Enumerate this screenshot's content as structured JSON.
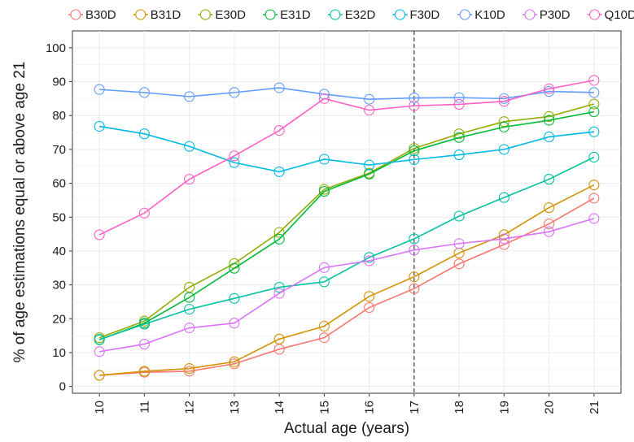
{
  "chart_data": {
    "type": "line",
    "title": "",
    "xlabel": "Actual age (years)",
    "ylabel": "% of age estimations equal or above age 21",
    "x": [
      10,
      11,
      12,
      13,
      14,
      15,
      16,
      17,
      18,
      19,
      20,
      21
    ],
    "xlim": [
      9.4,
      21.6
    ],
    "ylim": [
      -2,
      105
    ],
    "yticks": [
      0,
      10,
      20,
      30,
      40,
      50,
      60,
      70,
      80,
      90,
      100
    ],
    "reference_line_x": 17,
    "grid": true,
    "legend_position": "top",
    "series": [
      {
        "name": "B30D",
        "color": "#F8766D",
        "values": [
          3.3,
          4.2,
          4.5,
          6.7,
          11.0,
          14.4,
          23.3,
          28.9,
          36.2,
          41.9,
          48.0,
          55.6
        ]
      },
      {
        "name": "B31D",
        "color": "#D39200",
        "values": [
          3.3,
          4.5,
          5.3,
          7.3,
          14.0,
          17.8,
          26.6,
          32.4,
          39.4,
          44.8,
          52.8,
          59.5
        ]
      },
      {
        "name": "E30D",
        "color": "#93AA00",
        "values": [
          14.4,
          19.3,
          29.3,
          36.3,
          45.5,
          58.2,
          63.0,
          70.3,
          74.6,
          78.2,
          79.7,
          83.4
        ]
      },
      {
        "name": "E31D",
        "color": "#00BA38",
        "values": [
          13.8,
          18.7,
          26.3,
          34.9,
          43.5,
          57.6,
          62.7,
          69.6,
          73.5,
          76.6,
          78.6,
          81.1
        ]
      },
      {
        "name": "E32D",
        "color": "#00C19F",
        "values": [
          13.9,
          18.4,
          22.8,
          26.0,
          29.3,
          30.9,
          38.1,
          43.6,
          50.3,
          55.8,
          61.2,
          67.7
        ]
      },
      {
        "name": "F30D",
        "color": "#00B9E3",
        "values": [
          76.8,
          74.6,
          70.9,
          66.1,
          63.4,
          67.1,
          65.4,
          67.0,
          68.4,
          70.0,
          73.7,
          75.2
        ]
      },
      {
        "name": "K10D",
        "color": "#619CFF",
        "values": [
          87.7,
          86.8,
          85.6,
          86.8,
          88.2,
          86.3,
          84.8,
          85.2,
          85.3,
          85.0,
          87.1,
          86.8
        ]
      },
      {
        "name": "P30D",
        "color": "#DB72FB",
        "values": [
          10.3,
          12.5,
          17.3,
          18.7,
          27.5,
          35.1,
          37.1,
          40.3,
          42.2,
          43.6,
          45.7,
          49.6
        ]
      },
      {
        "name": "Q10D",
        "color": "#FF61C3",
        "values": [
          44.8,
          51.2,
          61.2,
          68.1,
          75.6,
          85.0,
          81.6,
          82.9,
          83.3,
          84.2,
          87.9,
          90.4
        ]
      }
    ]
  }
}
